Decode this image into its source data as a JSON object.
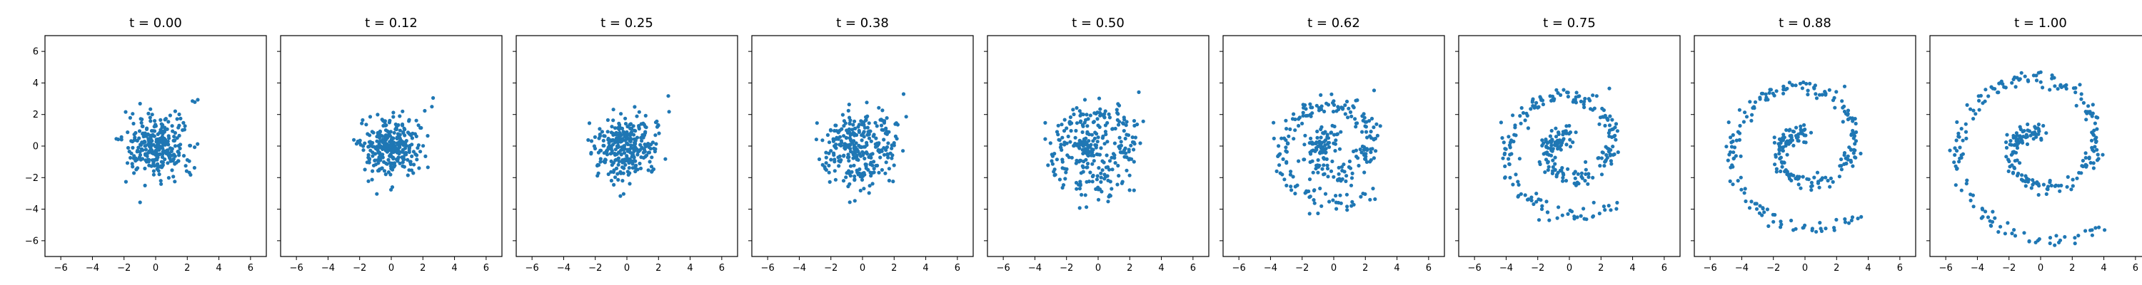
{
  "chart_data": {
    "type": "scatter",
    "xlim": [
      -7,
      7
    ],
    "ylim": [
      -7,
      7
    ],
    "xticks": [
      -6,
      -4,
      -2,
      0,
      2,
      4,
      6
    ],
    "yticks": [
      -6,
      -4,
      -2,
      0,
      2,
      4,
      6
    ],
    "xtick_labels": [
      "−6",
      "−4",
      "−2",
      "0",
      "2",
      "4",
      "6"
    ],
    "ytick_labels": [
      "−6",
      "−4",
      "−2",
      "0",
      "2",
      "4",
      "6"
    ],
    "grid": false,
    "marker_color": "#1f77b4",
    "shared_y": true,
    "points_per_panel": 300,
    "panels": [
      {
        "title": "t = 0.00",
        "t": 0.0
      },
      {
        "title": "t = 0.12",
        "t": 0.12
      },
      {
        "title": "t = 0.25",
        "t": 0.25
      },
      {
        "title": "t = 0.38",
        "t": 0.38
      },
      {
        "title": "t = 0.50",
        "t": 0.5
      },
      {
        "title": "t = 0.62",
        "t": 0.62
      },
      {
        "title": "t = 0.75",
        "t": 0.75
      },
      {
        "title": "t = 0.88",
        "t": 0.88
      },
      {
        "title": "t = 1.00",
        "t": 1.0
      }
    ]
  }
}
